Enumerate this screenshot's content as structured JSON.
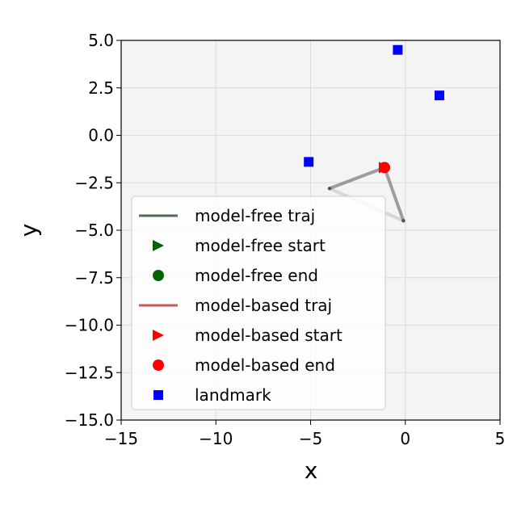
{
  "chart_data": {
    "type": "scatter",
    "xlabel": "x",
    "ylabel": "y",
    "xlim": [
      -15,
      5
    ],
    "ylim": [
      -15,
      5
    ],
    "x_ticks": [
      -15,
      -10,
      -5,
      0,
      5
    ],
    "y_ticks": [
      5.0,
      2.5,
      0.0,
      -2.5,
      -5.0,
      -7.5,
      -10.0,
      -12.5,
      -15.0
    ],
    "x_tick_labels": [
      "−15",
      "−10",
      "−5",
      "0",
      "5"
    ],
    "y_tick_labels": [
      "5.0",
      "2.5",
      "0.0",
      "−2.5",
      "−5.0",
      "−7.5",
      "−10.0",
      "−12.5",
      "−15.0"
    ],
    "grid": true,
    "legend_position": "lower-left",
    "series": [
      {
        "name": "model-free traj",
        "kind": "line",
        "color": "#556b55",
        "points": []
      },
      {
        "name": "model-free start",
        "kind": "marker",
        "marker": "triangle-right",
        "color": "#006400",
        "points": [
          [
            -1.1,
            -1.7
          ]
        ]
      },
      {
        "name": "model-free end",
        "kind": "marker",
        "marker": "circle",
        "color": "#006400",
        "points": [
          [
            -1.1,
            -1.7
          ]
        ]
      },
      {
        "name": "model-based traj",
        "kind": "line",
        "color": "#cc5555",
        "points": []
      },
      {
        "name": "model-based start",
        "kind": "marker",
        "marker": "triangle-right",
        "color": "#ff0000",
        "points": [
          [
            -1.1,
            -1.7
          ]
        ]
      },
      {
        "name": "model-based end",
        "kind": "marker",
        "marker": "circle",
        "color": "#ff0000",
        "points": [
          [
            -1.1,
            -1.7
          ]
        ]
      },
      {
        "name": "landmark",
        "kind": "marker",
        "marker": "square",
        "color": "#0000ff",
        "points": [
          [
            -0.4,
            4.5
          ],
          [
            1.8,
            2.1
          ],
          [
            -5.1,
            -1.4
          ]
        ]
      }
    ],
    "trajectory": {
      "color": "#808080",
      "points": [
        [
          -1.1,
          -1.7
        ],
        [
          -0.1,
          -4.5
        ],
        [
          -4.0,
          -2.8
        ],
        [
          -1.1,
          -1.7
        ]
      ]
    }
  }
}
